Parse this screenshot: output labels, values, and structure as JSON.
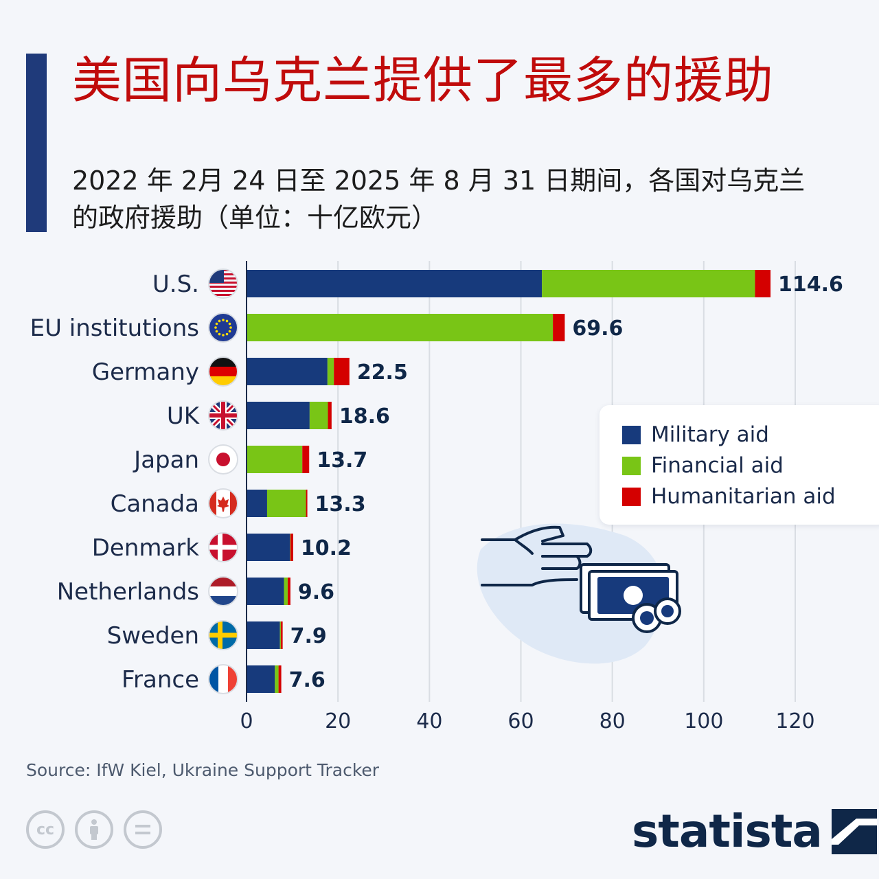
{
  "title": "美国向乌克兰提供了最多的援助",
  "subtitle": "2022 年 2月 24 日至 2025 年 8 月 31 日期间，各国对乌克兰的政府援助（单位：十亿欧元）",
  "legend": {
    "items": [
      {
        "label": "Military aid",
        "color": "#173a7c"
      },
      {
        "label": "Financial aid",
        "color": "#79c516"
      },
      {
        "label": "Humanitarian aid",
        "color": "#d40000"
      }
    ]
  },
  "source": "Source: IfW Kiel, Ukraine Support Tracker",
  "brand": "statista",
  "icons": {
    "cc": "cc-icon",
    "by": "attribution-icon",
    "nd": "no-derivatives-icon",
    "illustration": "hand-money-icon"
  },
  "colors": {
    "military": "#173a7c",
    "financial": "#79c516",
    "humanitarian": "#d40000",
    "title": "#c00b0b",
    "accent": "#1f3a7a"
  },
  "chart_data": {
    "type": "bar",
    "orientation": "horizontal",
    "stacked": true,
    "title": "美国向乌克兰提供了最多的援助",
    "xlabel": "",
    "ylabel": "",
    "xlim": [
      0,
      120
    ],
    "xticks": [
      0,
      20,
      40,
      60,
      80,
      100,
      120
    ],
    "grid": true,
    "legend_position": "right",
    "categories": [
      "U.S.",
      "EU institutions",
      "Germany",
      "UK",
      "Japan",
      "Canada",
      "Denmark",
      "Netherlands",
      "Sweden",
      "France"
    ],
    "flags": [
      "us-flag-icon",
      "eu-flag-icon",
      "germany-flag-icon",
      "uk-flag-icon",
      "japan-flag-icon",
      "canada-flag-icon",
      "denmark-flag-icon",
      "netherlands-flag-icon",
      "sweden-flag-icon",
      "france-flag-icon"
    ],
    "series": [
      {
        "name": "Military aid",
        "values": [
          64.6,
          0,
          17.7,
          13.8,
          0,
          4.5,
          9.5,
          8.2,
          7.3,
          6.2
        ]
      },
      {
        "name": "Financial aid",
        "values": [
          46.6,
          67.0,
          1.4,
          4.0,
          12.2,
          8.5,
          0.1,
          0.8,
          0.2,
          0.8
        ]
      },
      {
        "name": "Humanitarian aid",
        "values": [
          3.4,
          2.6,
          3.4,
          0.8,
          1.5,
          0.3,
          0.6,
          0.6,
          0.4,
          0.6
        ]
      }
    ],
    "totals": [
      "114.6",
      "69.6",
      "22.5",
      "18.6",
      "13.7",
      "13.3",
      "10.2",
      "9.6",
      "7.9",
      "7.6"
    ]
  }
}
